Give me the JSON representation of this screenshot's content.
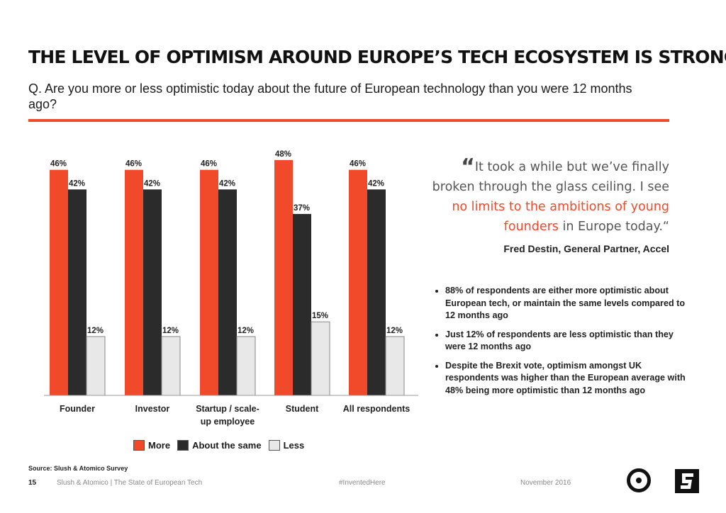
{
  "title": "THE LEVEL OF OPTIMISM AROUND EUROPE’S TECH ECOSYSTEM IS STRONG",
  "question": "Q. Are you more or less optimistic today about the future of European technology than you were 12 months ago?",
  "colors": {
    "accent": "#ef4a2b",
    "more": "#f04a2a",
    "same": "#2b2b2b",
    "less": "#e8e8e8"
  },
  "chart_data": {
    "type": "bar",
    "categories": [
      "Founder",
      "Investor",
      "Startup / scale-up employee",
      "Student",
      "All respondents"
    ],
    "series": [
      {
        "name": "More",
        "values": [
          46,
          46,
          46,
          48,
          46
        ]
      },
      {
        "name": "About the same",
        "values": [
          42,
          42,
          42,
          37,
          42
        ]
      },
      {
        "name": "Less",
        "values": [
          12,
          12,
          12,
          15,
          12
        ]
      }
    ],
    "value_suffix": "%",
    "ylim": [
      0,
      50
    ],
    "legend_position": "bottom",
    "grid": false
  },
  "legend": {
    "more": "More",
    "same": "About the same",
    "less": "Less"
  },
  "quote": {
    "part1": "It took a while but we’ve finally broken through the glass ceiling.  I see ",
    "highlight": "no limits to the ambitions of young founders",
    "part2": " in Europe today.“",
    "open_mark": "“",
    "attribution": "Fred Destin, General Partner, Accel"
  },
  "bullets": [
    "88% of respondents are either more optimistic about European tech, or maintain the same levels compared to 12 months ago",
    "Just 12% of respondents are less optimistic than they were 12 months ago",
    "Despite the Brexit vote, optimism amongst UK respondents was higher than the European average with 48% being more optimistic than 12 months ago"
  ],
  "source": "Source: Slush & Atomico Survey",
  "footer": {
    "page": "15",
    "report": "Slush & Atomico  |  The State of European Tech",
    "hashtag": "#InventedHere",
    "date": "November 2016"
  }
}
